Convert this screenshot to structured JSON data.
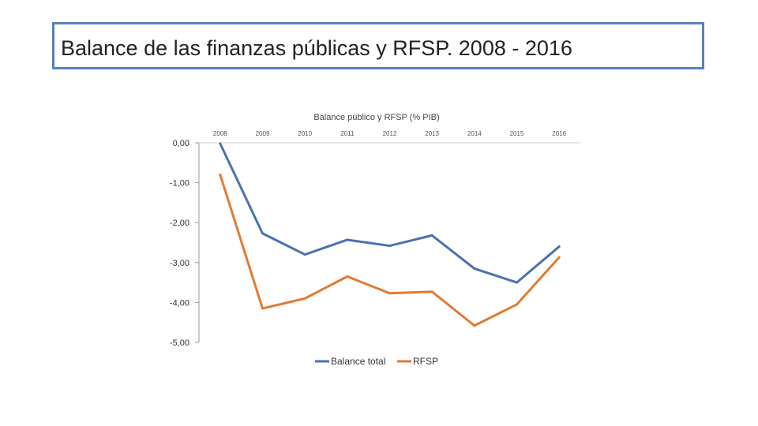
{
  "slide": {
    "title": "Balance de las finanzas públicas y RFSP. 2008 - 2016"
  },
  "chart_data": {
    "type": "line",
    "title": "Balance público y RFSP (% PIB)",
    "categories": [
      "2008",
      "2009",
      "2010",
      "2011",
      "2012",
      "2013",
      "2014",
      "2015",
      "2016"
    ],
    "series": [
      {
        "name": "Balance total",
        "color": "#4a72b0",
        "values": [
          -0.02,
          -2.27,
          -2.8,
          -2.43,
          -2.58,
          -2.32,
          -3.15,
          -3.5,
          -2.6
        ]
      },
      {
        "name": "RFSP",
        "color": "#e07b33",
        "values": [
          -0.8,
          -4.15,
          -3.9,
          -3.35,
          -3.77,
          -3.73,
          -4.58,
          -4.05,
          -2.87
        ]
      }
    ],
    "ylim": [
      -5,
      0
    ],
    "yticks": [
      "0,00",
      "-1,00",
      "-2,00",
      "-3,00",
      "-4,00",
      "-5,00"
    ],
    "xaxis_position": "top",
    "legend_position": "bottom",
    "grid": false
  }
}
